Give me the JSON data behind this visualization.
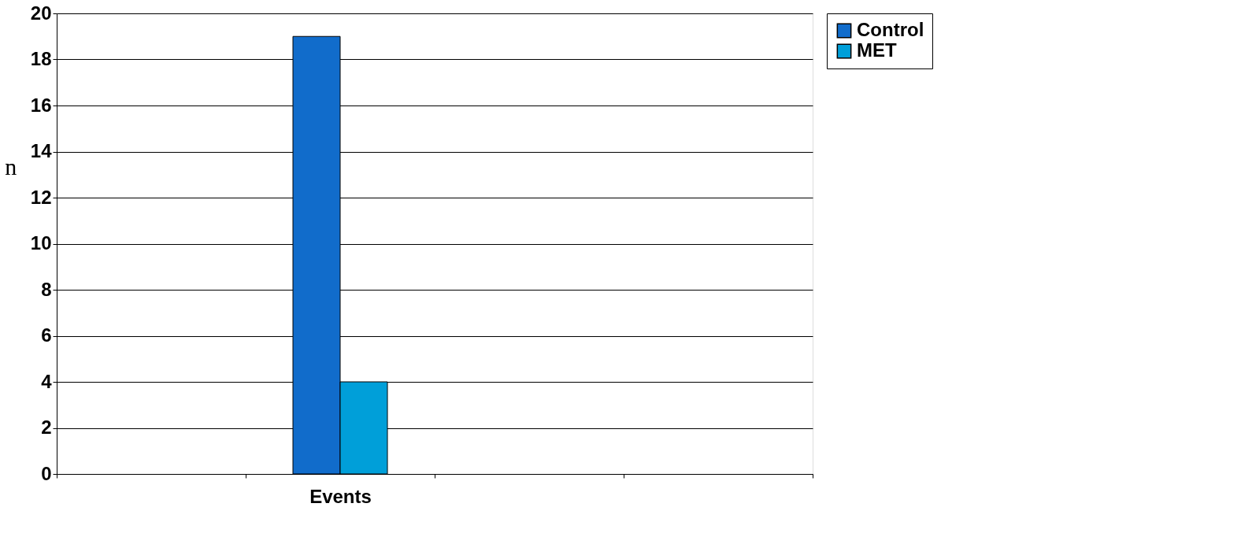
{
  "chart_data": {
    "type": "bar",
    "ylabel": "n",
    "categories": [
      null,
      "Events",
      null,
      null
    ],
    "series": [
      {
        "name": "Control",
        "color": "#116ccb",
        "values": [
          null,
          19,
          null,
          null
        ]
      },
      {
        "name": "MET",
        "color": "#009fd9",
        "values": [
          null,
          4,
          null,
          null
        ]
      }
    ],
    "ylim": [
      0,
      20
    ],
    "yticks": [
      0,
      2,
      4,
      6,
      8,
      10,
      12,
      14,
      16,
      18,
      20
    ],
    "grid": "y",
    "legend": "right"
  }
}
